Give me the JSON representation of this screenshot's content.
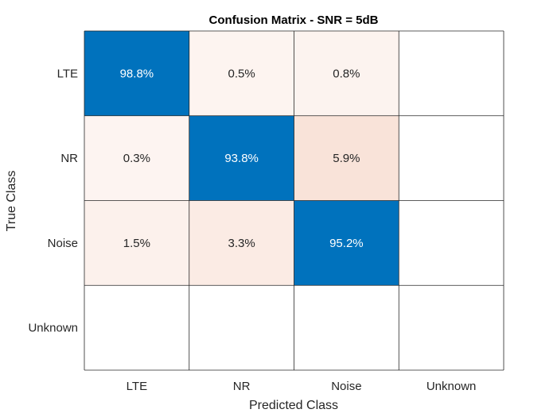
{
  "chart_data": {
    "type": "heatmap",
    "title": "Confusion Matrix - SNR = 5dB",
    "xlabel": "Predicted Class",
    "ylabel": "True Class",
    "columns": [
      "LTE",
      "NR",
      "Noise",
      "Unknown"
    ],
    "rows": [
      "LTE",
      "NR",
      "Noise",
      "Unknown"
    ],
    "values": [
      [
        98.8,
        0.5,
        0.8,
        null
      ],
      [
        0.3,
        93.8,
        5.9,
        null
      ],
      [
        1.5,
        3.3,
        95.2,
        null
      ],
      [
        null,
        null,
        null,
        null
      ]
    ],
    "labels": [
      [
        "98.8%",
        "0.5%",
        "0.8%",
        ""
      ],
      [
        "0.3%",
        "93.8%",
        "5.9%",
        ""
      ],
      [
        "1.5%",
        "3.3%",
        "95.2%",
        ""
      ],
      [
        "",
        "",
        "",
        ""
      ]
    ],
    "colors": {
      "diagonal": "#0072bd",
      "offdiag_low": "#fdf5f2",
      "offdiag_high": "#f9e3d9",
      "empty": "#ffffff",
      "grid": "#262626"
    }
  }
}
